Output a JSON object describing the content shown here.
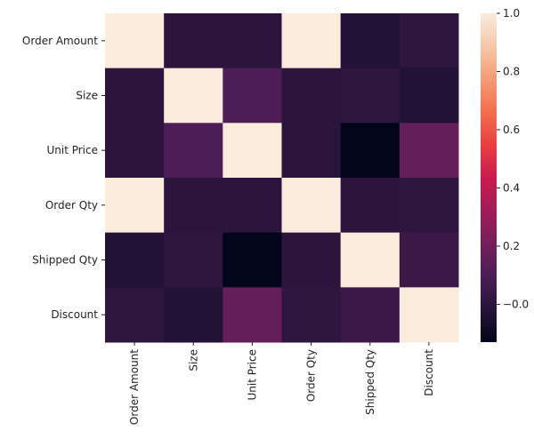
{
  "chart_data": {
    "type": "heatmap",
    "title": "",
    "xlabel": "",
    "ylabel": "",
    "x_categories": [
      "Order Amount",
      "Size",
      "Unit Price",
      "Order Qty",
      "Shipped Qty",
      "Discount"
    ],
    "y_categories": [
      "Order Amount",
      "Size",
      "Unit Price",
      "Order Qty",
      "Shipped Qty",
      "Discount"
    ],
    "values": [
      [
        1.0,
        0.0,
        0.0,
        1.0,
        -0.03,
        0.01
      ],
      [
        0.0,
        1.0,
        0.1,
        0.0,
        0.01,
        -0.03
      ],
      [
        0.0,
        0.1,
        1.0,
        0.0,
        -0.13,
        0.16
      ],
      [
        1.0,
        0.0,
        0.0,
        1.0,
        0.0,
        0.01
      ],
      [
        -0.03,
        0.01,
        -0.13,
        0.0,
        1.0,
        0.05
      ],
      [
        0.01,
        -0.03,
        0.16,
        0.01,
        0.05,
        1.0
      ]
    ],
    "colorbar": {
      "range": [
        -0.13,
        1.0
      ],
      "ticks": [
        -0.0,
        0.2,
        0.4,
        0.6,
        0.8,
        1.0
      ],
      "tick_labels": [
        "−0.0",
        "0.2",
        "0.4",
        "0.6",
        "0.8",
        "1.0"
      ],
      "colormap": "rocket"
    }
  }
}
